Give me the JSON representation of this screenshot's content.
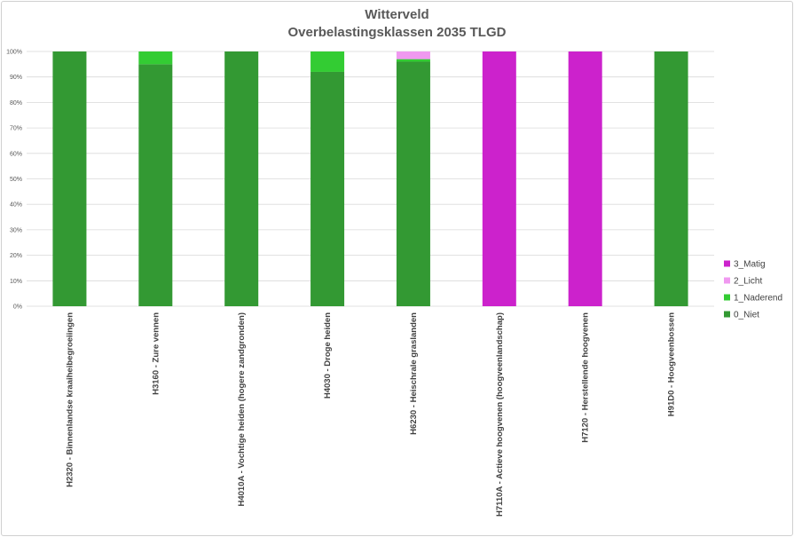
{
  "chart_data": {
    "type": "bar",
    "stacked": true,
    "title": "Witterveld",
    "subtitle": "Overbelastingsklassen 2035 TLGD",
    "ylim": [
      0,
      100
    ],
    "y_ticks": [
      "0%",
      "10%",
      "20%",
      "30%",
      "40%",
      "50%",
      "60%",
      "70%",
      "80%",
      "90%",
      "100%"
    ],
    "grid": true,
    "legend_position": "right",
    "categories": [
      "H2320 - Binnenlandse kraaiheibegroeiingen",
      "H3160 - Zure vennen",
      "H4010A - Vochtige heiden (hogere zandgronden)",
      "H4030 - Droge heiden",
      "H6230 - Heischrale graslanden",
      "H7110A - Actieve hoogvenen (hoogveenlandschap)",
      "H7120 - Herstellende hoogvenen",
      "H91D0 - Hoogveenbossen"
    ],
    "series": [
      {
        "name": "0_Niet",
        "color": "#339933",
        "values": [
          100,
          95,
          100,
          92,
          96,
          0,
          0,
          100
        ]
      },
      {
        "name": "1_Naderend",
        "color": "#33cc33",
        "values": [
          0,
          5,
          0,
          8,
          1,
          0,
          0,
          0
        ]
      },
      {
        "name": "2_Licht",
        "color": "#f099f0",
        "values": [
          0,
          0,
          0,
          0,
          3,
          0,
          0,
          0
        ]
      },
      {
        "name": "3_Matig",
        "color": "#cc22cc",
        "values": [
          0,
          0,
          0,
          0,
          0,
          100,
          100,
          0
        ]
      }
    ]
  }
}
